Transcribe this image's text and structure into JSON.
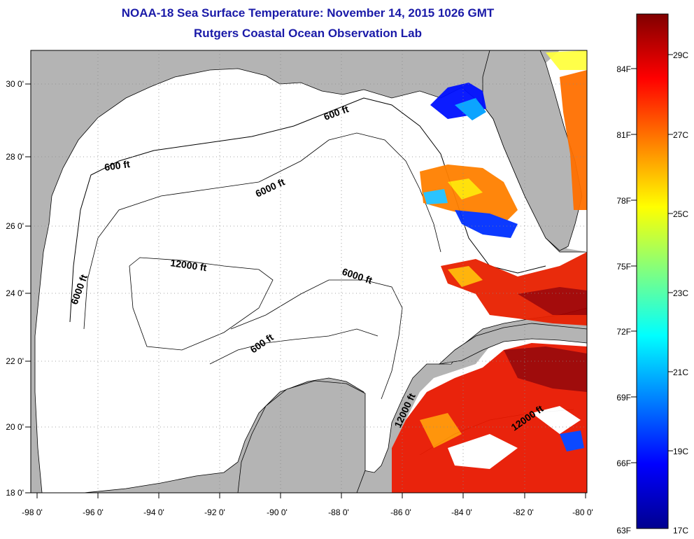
{
  "header": {
    "title": "NOAA-18 Sea Surface Temperature:  November 14, 2015 1026 GMT",
    "subtitle": "Rutgers Coastal Ocean Observation Lab"
  },
  "map": {
    "lon_ticks": [
      "-98 0'",
      "-96 0'",
      "-94 0'",
      "-92 0'",
      "-90 0'",
      "-88 0'",
      "-86 0'",
      "-84 0'",
      "-82 0'",
      "-80 0'"
    ],
    "lat_ticks": [
      "30 0'",
      "28 0'",
      "26 0'",
      "24 0'",
      "22 0'",
      "20 0'",
      "18 0'"
    ],
    "land_color": "#b4b4b4",
    "ocean_color": "#ffffff",
    "contour_labels": [
      "600 ft",
      "600 ft",
      "6000 ft",
      "6000 ft",
      "6000 ft",
      "12000 ft",
      "600 ft",
      "12000 ft",
      "12000 ft"
    ]
  },
  "colorbar": {
    "colors": [
      "#00008f",
      "#0000ff",
      "#0080ff",
      "#00ffff",
      "#80ff80",
      "#ffff00",
      "#ff8000",
      "#ff0000",
      "#800000"
    ],
    "fahrenheit": [
      "84F",
      "81F",
      "78F",
      "75F",
      "72F",
      "69F",
      "66F",
      "63F"
    ],
    "celsius": [
      "29C",
      "27C",
      "25C",
      "23C",
      "21C",
      "19C",
      "17C"
    ]
  }
}
